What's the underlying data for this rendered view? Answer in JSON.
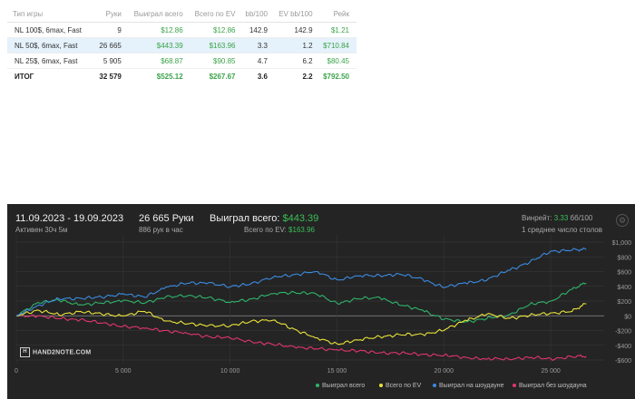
{
  "table": {
    "headers": [
      "Тип игры",
      "Руки",
      "Выиграл всего",
      "Всего по EV",
      "bb/100",
      "EV bb/100",
      "Рейк"
    ],
    "rows": [
      [
        "NL 100$, 6max, Fast",
        "9",
        "$12.86",
        "$12.86",
        "142.9",
        "142.9",
        "$1.21"
      ],
      [
        "NL 50$, 6max, Fast",
        "26 665",
        "$443.39",
        "$163.96",
        "3.3",
        "1.2",
        "$710.84"
      ],
      [
        "NL 25$, 6max, Fast",
        "5 905",
        "$68.87",
        "$90.85",
        "4.7",
        "6.2",
        "$80.45"
      ]
    ],
    "total": [
      "ИТОГ",
      "32 579",
      "$525.12",
      "$267.67",
      "3.6",
      "2.2",
      "$792.50"
    ]
  },
  "summary": {
    "date_range": "11.09.2023 - 19.09.2023",
    "active": "Активен 30ч 5м",
    "hands": "26 665 Руки",
    "hands_per_hour": "886 рук в час",
    "won_label": "Выиграл всего:",
    "won_value": "$443.39",
    "ev_label": "Всего по EV:",
    "ev_value": "$163.96",
    "winrate_label": "Винрейт:",
    "winrate_value": "3.33",
    "winrate_unit": "бб/100",
    "tables_avg": "1 среднее число столов",
    "logo": "HAND2NOTE.COM"
  },
  "colors": {
    "won": "#2fb36b",
    "ev": "#e9e23a",
    "showdown": "#3b8be0",
    "nonshowdown": "#e0356e",
    "money": "#3ba34a"
  },
  "chart_data": {
    "type": "line",
    "xlim": [
      0,
      27500
    ],
    "ylim": [
      -600,
      1000
    ],
    "x_ticks": [
      0,
      5000,
      10000,
      15000,
      20000,
      25000
    ],
    "x_tick_labels": [
      "0",
      "5 000",
      "10 000",
      "15 000",
      "20 000",
      "25 000"
    ],
    "y_ticks": [
      1000,
      800,
      600,
      400,
      200,
      0,
      -200,
      -400,
      -600
    ],
    "y_tick_labels": [
      "$1,000",
      "$800",
      "$600",
      "$400",
      "$200",
      "$0",
      "-$200",
      "-$400",
      "-$600"
    ],
    "series": [
      {
        "name": "Выиграл всего",
        "key": "won",
        "x": [
          0,
          1000,
          2000,
          3000,
          4000,
          5000,
          6000,
          7000,
          8000,
          9000,
          10000,
          11000,
          12000,
          13000,
          14000,
          15000,
          16000,
          17000,
          18000,
          19000,
          20000,
          21000,
          22000,
          23000,
          24000,
          25000,
          26000,
          26665
        ],
        "y": [
          0,
          180,
          210,
          150,
          170,
          210,
          170,
          260,
          270,
          250,
          180,
          230,
          300,
          320,
          300,
          170,
          230,
          250,
          140,
          80,
          -50,
          -80,
          -40,
          10,
          150,
          200,
          360,
          443
        ]
      },
      {
        "name": "Всего по EV",
        "key": "ev",
        "x": [
          0,
          1000,
          2000,
          3000,
          4000,
          5000,
          6000,
          7000,
          8000,
          9000,
          10000,
          11000,
          12000,
          13000,
          14000,
          15000,
          16000,
          17000,
          18000,
          19000,
          20000,
          21000,
          22000,
          23000,
          24000,
          25000,
          26000,
          26665
        ],
        "y": [
          0,
          80,
          10,
          60,
          20,
          0,
          60,
          -70,
          -110,
          -130,
          -140,
          -70,
          -60,
          -180,
          -300,
          -380,
          -330,
          -280,
          -260,
          -250,
          -200,
          -60,
          20,
          -30,
          0,
          40,
          60,
          164
        ]
      },
      {
        "name": "Выиграл на шоудауне",
        "key": "showdown",
        "x": [
          0,
          1000,
          2000,
          3000,
          4000,
          5000,
          6000,
          7000,
          8000,
          9000,
          10000,
          11000,
          12000,
          13000,
          14000,
          15000,
          16000,
          17000,
          18000,
          19000,
          20000,
          21000,
          22000,
          23000,
          24000,
          25000,
          26000,
          26665
        ],
        "y": [
          0,
          140,
          230,
          240,
          250,
          300,
          250,
          390,
          440,
          450,
          390,
          440,
          520,
          560,
          600,
          490,
          540,
          550,
          560,
          500,
          380,
          450,
          480,
          620,
          720,
          880,
          890,
          900
        ]
      },
      {
        "name": "Выиграл без шоудауна",
        "key": "nonshowdown",
        "x": [
          0,
          1000,
          2000,
          3000,
          4000,
          5000,
          6000,
          7000,
          8000,
          9000,
          10000,
          11000,
          12000,
          13000,
          14000,
          15000,
          16000,
          17000,
          18000,
          19000,
          20000,
          21000,
          22000,
          23000,
          24000,
          25000,
          26000,
          26665
        ],
        "y": [
          0,
          0,
          -40,
          -50,
          -100,
          -140,
          -170,
          -200,
          -240,
          -280,
          -300,
          -350,
          -390,
          -420,
          -450,
          -460,
          -480,
          -500,
          -510,
          -520,
          -540,
          -560,
          -590,
          -580,
          -570,
          -580,
          -560,
          -550
        ]
      }
    ]
  }
}
